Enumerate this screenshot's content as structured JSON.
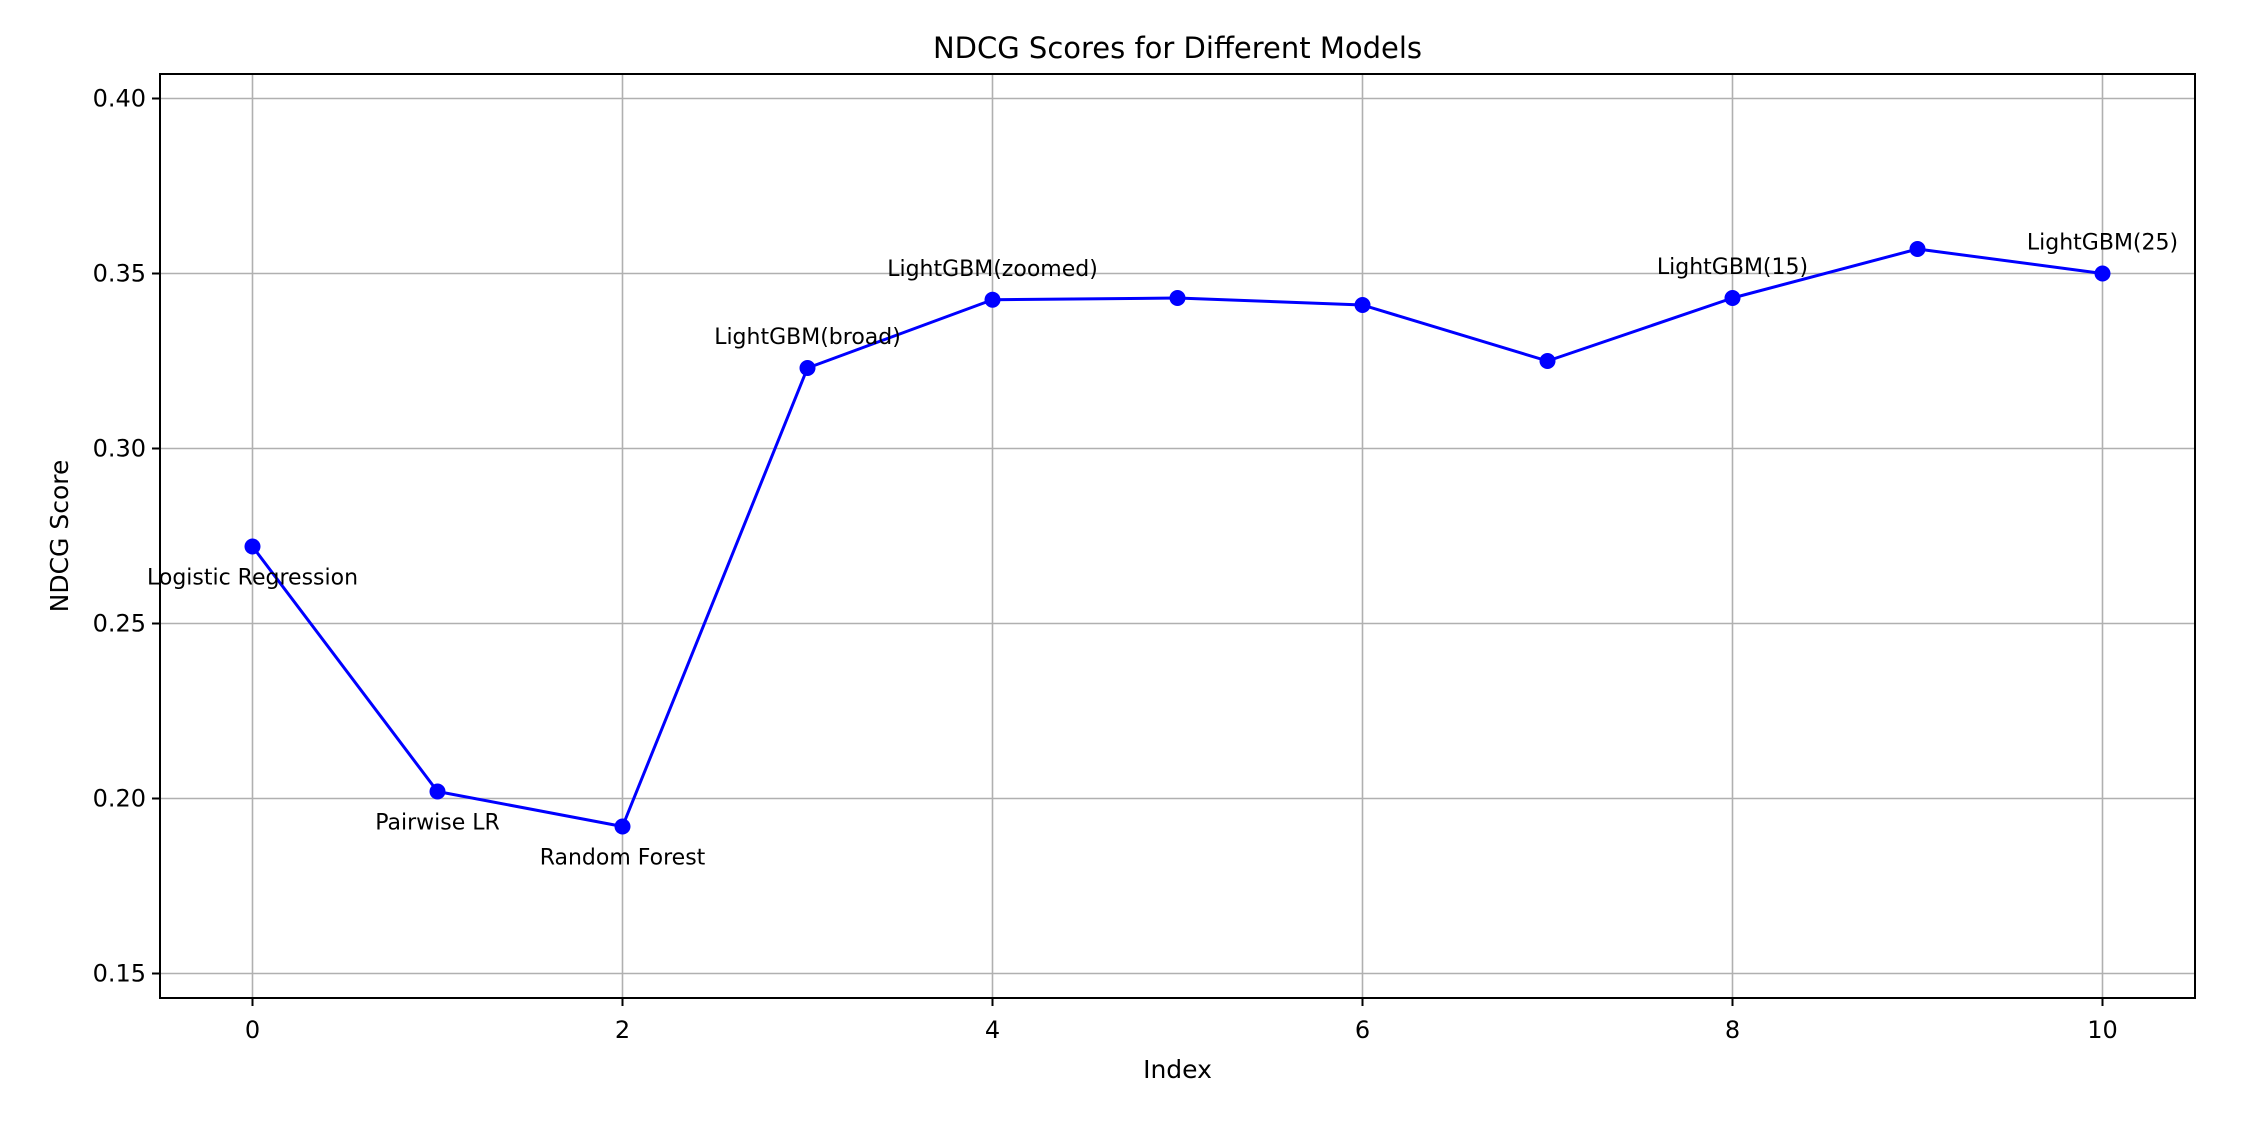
{
  "chart_data": {
    "type": "line",
    "title": "NDCG Scores for Different Models",
    "xlabel": "Index",
    "ylabel": "NDCG Score",
    "xlim": [
      -0.5,
      10.5
    ],
    "ylim": [
      0.143,
      0.407
    ],
    "xticks": [
      0,
      2,
      4,
      6,
      8,
      10
    ],
    "xtick_labels": [
      "0",
      "2",
      "4",
      "6",
      "8",
      "10"
    ],
    "yticks": [
      0.15,
      0.2,
      0.25,
      0.3,
      0.35,
      0.4
    ],
    "ytick_labels": [
      "0.15",
      "0.20",
      "0.25",
      "0.30",
      "0.35",
      "0.40"
    ],
    "grid": true,
    "line_color": "#0000ff",
    "series": [
      {
        "x": [
          0,
          1,
          2,
          3,
          4,
          5,
          6,
          7,
          8,
          9,
          10
        ],
        "values": [
          0.272,
          0.202,
          0.192,
          0.323,
          0.3425,
          0.343,
          0.341,
          0.325,
          0.343,
          0.357,
          0.35
        ]
      }
    ],
    "annotations": [
      {
        "index": 0,
        "text": "Logistic Regression",
        "position": "below"
      },
      {
        "index": 1,
        "text": "Pairwise LR",
        "position": "below"
      },
      {
        "index": 2,
        "text": "Random Forest",
        "position": "below"
      },
      {
        "index": 3,
        "text": "LightGBM(broad)",
        "position": "above"
      },
      {
        "index": 4,
        "text": "LightGBM(zoomed)",
        "position": "above"
      },
      {
        "index": 8,
        "text": "LightGBM(15)",
        "position": "above"
      },
      {
        "index": 10,
        "text": "LightGBM(25)",
        "position": "above"
      }
    ]
  }
}
